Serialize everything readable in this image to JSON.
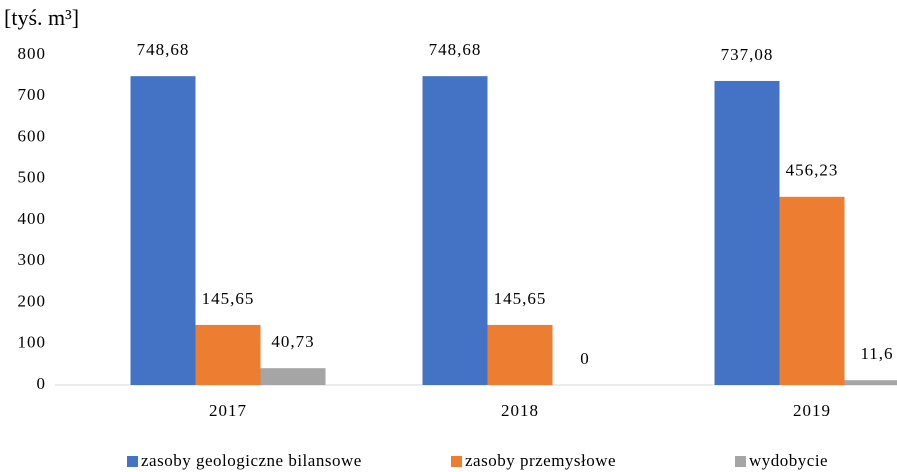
{
  "chart_data": {
    "type": "bar",
    "axis_label": "[tyś. m³]",
    "categories": [
      "2017",
      "2018",
      "2019"
    ],
    "series": [
      {
        "name": "zasoby geologiczne bilansowe",
        "color": "#4472c4",
        "values": [
          748.68,
          748.68,
          737.08
        ],
        "value_labels": [
          "748,68",
          "748,68",
          "737,08"
        ]
      },
      {
        "name": "zasoby przemysłowe",
        "color": "#ed7d31",
        "values": [
          145.65,
          145.65,
          456.23
        ],
        "value_labels": [
          "145,65",
          "145,65",
          "456,23"
        ]
      },
      {
        "name": "wydobycie",
        "color": "#a5a5a5",
        "values": [
          40.73,
          0,
          11.6
        ],
        "value_labels": [
          "40,73",
          "0",
          "11,6"
        ]
      }
    ],
    "ylim": [
      0,
      800
    ],
    "yticks": [
      0,
      100,
      200,
      300,
      400,
      500,
      600,
      700,
      800
    ],
    "grid": false,
    "legend": "bottom"
  }
}
